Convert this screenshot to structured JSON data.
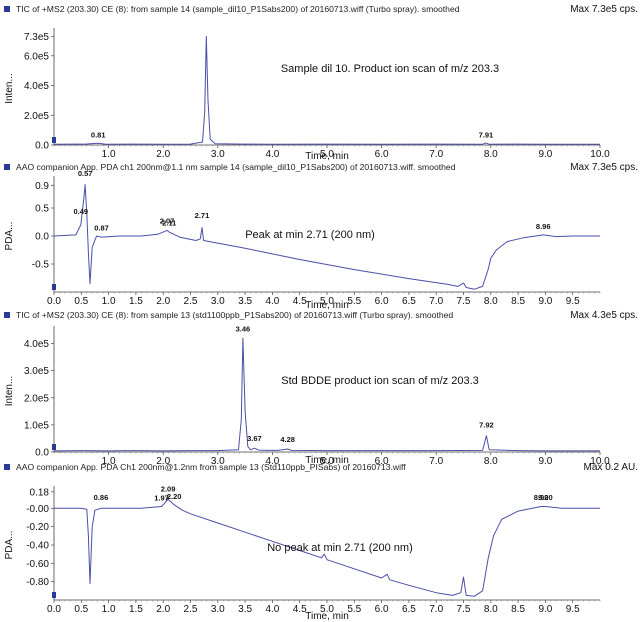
{
  "chart_data": [
    {
      "type": "line",
      "header": "TIC of +MS2 (203.30) CE (8): from sample 14 (sample_dil10_P1Sabs200) of 20160713.wiff (Turbo spray). smoothed",
      "max_label": "Max 7.3e5 cps.",
      "annotation": "Sample dil 10. Product ion scan of m/z 203.3",
      "ylabel": "Inten...",
      "xlabel": "Time, min",
      "xlim": [
        0.0,
        10.0
      ],
      "ylim": [
        0,
        760000
      ],
      "xticks": [
        "1.0",
        "2.0",
        "3.0",
        "4.0",
        "5.0",
        "6.0",
        "7.0",
        "8.0",
        "9.0",
        "10.0"
      ],
      "yticks": [
        {
          "label": "0.0",
          "value": 0
        },
        {
          "label": "2.0e5",
          "value": 200000
        },
        {
          "label": "4.0e5",
          "value": 400000
        },
        {
          "label": "6.0e5",
          "value": 600000
        },
        {
          "label": "7.3e5",
          "value": 730000
        }
      ],
      "peak_labels": [
        {
          "label": "0.81",
          "x": 0.81,
          "y": 22000
        },
        {
          "label": "7.91",
          "x": 7.91,
          "y": 22000
        }
      ],
      "series": [
        {
          "color": "#4a4fa8",
          "points": [
            [
              0.0,
              5000
            ],
            [
              0.3,
              6000
            ],
            [
              0.6,
              7000
            ],
            [
              0.81,
              12000
            ],
            [
              0.95,
              5000
            ],
            [
              1.5,
              6000
            ],
            [
              2.0,
              5000
            ],
            [
              2.5,
              6000
            ],
            [
              2.72,
              20000
            ],
            [
              2.76,
              220000
            ],
            [
              2.79,
              730000
            ],
            [
              2.82,
              300000
            ],
            [
              2.86,
              40000
            ],
            [
              2.95,
              8000
            ],
            [
              3.5,
              6000
            ],
            [
              4.0,
              5000
            ],
            [
              5.0,
              6000
            ],
            [
              6.0,
              5000
            ],
            [
              7.0,
              6000
            ],
            [
              7.85,
              5000
            ],
            [
              7.91,
              14000
            ],
            [
              7.97,
              5000
            ],
            [
              8.5,
              6000
            ],
            [
              9.0,
              5000
            ],
            [
              10.0,
              5000
            ]
          ]
        }
      ]
    },
    {
      "type": "line",
      "header": "AAO companion App. PDA ch1 200nm@1.1 nm sample 14 (sample_dil10_P1Sabs200) of 20160713.wiff. smoothed",
      "max_label": "Max 7.3e5 cps.",
      "annotation": "Peak at min 2.71 (200 nm)",
      "ylabel": "PDA...",
      "xlabel": "Time, min",
      "xlim": [
        0.0,
        10.0
      ],
      "ylim": [
        -1.0,
        1.0
      ],
      "xticks": [
        "0.0",
        "0.5",
        "1.0",
        "1.5",
        "2.0",
        "2.5",
        "3.0",
        "3.5",
        "4.0",
        "4.5",
        "5.0",
        "5.5",
        "6.0",
        "6.5",
        "7.0",
        "7.5",
        "8.0",
        "8.5",
        "9.0",
        "9.5"
      ],
      "yticks": [
        {
          "label": "0.9",
          "value": 0.9
        },
        {
          "label": "0.5",
          "value": 0.5
        },
        {
          "label": "0.0",
          "value": 0.0
        },
        {
          "label": "-0.5",
          "value": -0.5
        }
      ],
      "peak_labels": [
        {
          "label": "0.49",
          "x": 0.49,
          "y": 0.32
        },
        {
          "label": "0.57",
          "x": 0.57,
          "y": 1.02
        },
        {
          "label": "0.87",
          "x": 0.87,
          "y": 0.03
        },
        {
          "label": "2.07",
          "x": 2.07,
          "y": 0.15
        },
        {
          "label": "2.11",
          "x": 2.11,
          "y": 0.12
        },
        {
          "label": "2.71",
          "x": 2.71,
          "y": 0.25
        },
        {
          "label": "8.96",
          "x": 8.96,
          "y": 0.05
        }
      ],
      "series": [
        {
          "color": "#4a4fa8",
          "points": [
            [
              0.0,
              0.0
            ],
            [
              0.4,
              0.02
            ],
            [
              0.49,
              0.2
            ],
            [
              0.55,
              0.7
            ],
            [
              0.57,
              0.92
            ],
            [
              0.6,
              0.4
            ],
            [
              0.63,
              -0.3
            ],
            [
              0.66,
              -0.85
            ],
            [
              0.7,
              -0.2
            ],
            [
              0.78,
              0.0
            ],
            [
              0.87,
              -0.02
            ],
            [
              1.2,
              0.0
            ],
            [
              1.6,
              0.0
            ],
            [
              1.9,
              0.03
            ],
            [
              2.07,
              0.1
            ],
            [
              2.11,
              0.07
            ],
            [
              2.3,
              -0.02
            ],
            [
              2.6,
              -0.08
            ],
            [
              2.68,
              -0.05
            ],
            [
              2.71,
              0.15
            ],
            [
              2.74,
              -0.08
            ],
            [
              3.5,
              -0.22
            ],
            [
              4.5,
              -0.42
            ],
            [
              5.5,
              -0.6
            ],
            [
              6.5,
              -0.76
            ],
            [
              7.2,
              -0.86
            ],
            [
              7.4,
              -0.9
            ],
            [
              7.5,
              -0.84
            ],
            [
              7.55,
              -0.92
            ],
            [
              7.7,
              -0.95
            ],
            [
              7.85,
              -0.9
            ],
            [
              7.95,
              -0.6
            ],
            [
              8.0,
              -0.4
            ],
            [
              8.1,
              -0.25
            ],
            [
              8.3,
              -0.1
            ],
            [
              8.6,
              -0.03
            ],
            [
              8.96,
              0.02
            ],
            [
              9.2,
              -0.01
            ],
            [
              9.5,
              0.0
            ],
            [
              10.0,
              0.0
            ]
          ]
        }
      ]
    },
    {
      "type": "line",
      "header": "TIC of +MS2 (203.30) CE (8): from sample 13 (std1100ppb_P1Sabs200) of 20160713.wiff (Turbo spray). smoothed",
      "max_label": "Max 4.3e5 cps.",
      "annotation": "Std BDDE product ion scan of m/z 203.3",
      "ylabel": "Inten...",
      "xlabel": "Time, min",
      "xlim": [
        0.0,
        10.0
      ],
      "ylim": [
        0,
        450000
      ],
      "xticks": [
        "1.0",
        "2.0",
        "3.0",
        "4.0",
        "5.0",
        "6.0",
        "7.0",
        "8.0",
        "9.0",
        "10.0"
      ],
      "yticks": [
        {
          "label": "0.0",
          "value": 0
        },
        {
          "label": "1.0e5",
          "value": 100000
        },
        {
          "label": "2.0e5",
          "value": 200000
        },
        {
          "label": "3.0e5",
          "value": 300000
        },
        {
          "label": "4.0e5",
          "value": 400000
        }
      ],
      "peak_labels": [
        {
          "label": "3.46",
          "x": 3.46,
          "y": 430000
        },
        {
          "label": "3.67",
          "x": 3.67,
          "y": 25000
        },
        {
          "label": "4.28",
          "x": 4.28,
          "y": 22000
        },
        {
          "label": "7.92",
          "x": 7.92,
          "y": 75000
        }
      ],
      "series": [
        {
          "color": "#4a4fa8",
          "points": [
            [
              0.0,
              4000
            ],
            [
              0.5,
              5000
            ],
            [
              1.0,
              4000
            ],
            [
              1.5,
              5000
            ],
            [
              2.0,
              4000
            ],
            [
              2.5,
              5000
            ],
            [
              3.0,
              5000
            ],
            [
              3.38,
              8000
            ],
            [
              3.43,
              120000
            ],
            [
              3.46,
              420000
            ],
            [
              3.5,
              150000
            ],
            [
              3.55,
              20000
            ],
            [
              3.6,
              8000
            ],
            [
              3.67,
              14000
            ],
            [
              3.75,
              7000
            ],
            [
              3.9,
              6000
            ],
            [
              4.1,
              6000
            ],
            [
              4.28,
              11000
            ],
            [
              4.35,
              6000
            ],
            [
              5.0,
              5000
            ],
            [
              6.0,
              5000
            ],
            [
              7.0,
              5000
            ],
            [
              7.85,
              6000
            ],
            [
              7.92,
              60000
            ],
            [
              7.97,
              8000
            ],
            [
              8.5,
              5000
            ],
            [
              9.0,
              4000
            ],
            [
              10.0,
              4000
            ]
          ]
        }
      ]
    },
    {
      "type": "line",
      "header": "AAO companion App. PDA Ch1 200nm@1.2nm from sample 13 (Std110ppb_PISabs) of 20160713.wiff",
      "max_label": "Max 0.2 AU.",
      "annotation": "No peak at min 2.71 (200 nm)",
      "ylabel": "PDA...",
      "xlabel": "Time, min",
      "xlim": [
        0.0,
        10.0
      ],
      "ylim": [
        -1.0,
        0.2
      ],
      "xticks": [
        "0.0",
        "0.5",
        "1.0",
        "1.5",
        "2.0",
        "2.5",
        "3.0",
        "3.5",
        "4.0",
        "4.5",
        "5.0",
        "5.5",
        "6.0",
        "6.5",
        "7.0",
        "7.5",
        "8.0",
        "8.5",
        "9.0",
        "9.5"
      ],
      "yticks": [
        {
          "label": "0.18",
          "value": 0.18
        },
        {
          "label": "-0.00",
          "value": 0.0
        },
        {
          "label": "-0.20",
          "value": -0.2
        },
        {
          "label": "-0.40",
          "value": -0.4
        },
        {
          "label": "-0.60",
          "value": -0.6
        },
        {
          "label": "-0.80",
          "value": -0.8
        }
      ],
      "peak_labels": [
        {
          "label": "0.86",
          "x": 0.86,
          "y": 0.05
        },
        {
          "label": "1.97",
          "x": 1.97,
          "y": 0.04
        },
        {
          "label": "2.09",
          "x": 2.09,
          "y": 0.14
        },
        {
          "label": "2.20",
          "x": 2.2,
          "y": 0.06
        },
        {
          "label": "8.92",
          "x": 8.92,
          "y": 0.05
        },
        {
          "label": "9.00",
          "x": 9.0,
          "y": 0.05
        }
      ],
      "series": [
        {
          "color": "#4a4fa8",
          "points": [
            [
              0.0,
              0.0
            ],
            [
              0.5,
              0.0
            ],
            [
              0.6,
              -0.01
            ],
            [
              0.63,
              -0.3
            ],
            [
              0.66,
              -0.82
            ],
            [
              0.7,
              -0.2
            ],
            [
              0.75,
              -0.02
            ],
            [
              0.86,
              0.0
            ],
            [
              1.2,
              0.0
            ],
            [
              1.6,
              0.0
            ],
            [
              1.97,
              0.02
            ],
            [
              2.09,
              0.1
            ],
            [
              2.2,
              0.04
            ],
            [
              2.35,
              -0.02
            ],
            [
              2.5,
              -0.06
            ],
            [
              3.0,
              -0.16
            ],
            [
              3.5,
              -0.26
            ],
            [
              4.0,
              -0.36
            ],
            [
              4.5,
              -0.46
            ],
            [
              4.9,
              -0.54
            ],
            [
              4.95,
              -0.5
            ],
            [
              5.0,
              -0.56
            ],
            [
              5.5,
              -0.66
            ],
            [
              6.0,
              -0.76
            ],
            [
              6.1,
              -0.72
            ],
            [
              6.15,
              -0.78
            ],
            [
              6.5,
              -0.84
            ],
            [
              7.0,
              -0.92
            ],
            [
              7.3,
              -0.95
            ],
            [
              7.45,
              -0.92
            ],
            [
              7.5,
              -0.75
            ],
            [
              7.55,
              -0.95
            ],
            [
              7.7,
              -0.96
            ],
            [
              7.85,
              -0.9
            ],
            [
              7.95,
              -0.55
            ],
            [
              8.05,
              -0.3
            ],
            [
              8.2,
              -0.12
            ],
            [
              8.5,
              -0.03
            ],
            [
              8.92,
              0.02
            ],
            [
              9.0,
              0.02
            ],
            [
              9.3,
              0.0
            ],
            [
              10.0,
              0.0
            ]
          ]
        }
      ]
    }
  ]
}
